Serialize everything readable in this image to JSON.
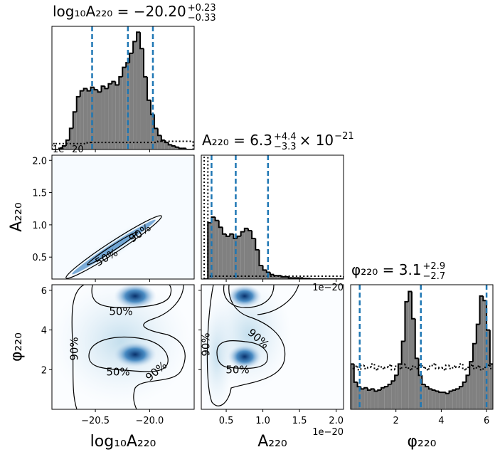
{
  "chart_data": [
    {
      "type": "histogram",
      "title": "log₁₀A₂₂₀ = −20.20",
      "title_sup": "+0.23",
      "title_sub": "−0.33",
      "bins": [
        -20.9,
        -20.8675,
        -20.835,
        -20.8025,
        -20.77,
        -20.7375,
        -20.705,
        -20.6725,
        -20.64,
        -20.6075,
        -20.575,
        -20.5425,
        -20.51,
        -20.4775,
        -20.445,
        -20.4125,
        -20.38,
        -20.3475,
        -20.315,
        -20.2825,
        -20.25,
        -20.2175,
        -20.185,
        -20.1525,
        -20.12,
        -20.0875,
        -20.055,
        -20.0225,
        -19.99,
        -19.9575,
        -19.925,
        -19.8925,
        -19.86,
        -19.8275,
        -19.795,
        -19.7625,
        -19.73,
        -19.6975,
        -19.665,
        -19.6325,
        -19.6
      ],
      "values": [
        0,
        0,
        1,
        3,
        8,
        18,
        32,
        45,
        50,
        52,
        50,
        53,
        51,
        49,
        54,
        52,
        56,
        58,
        55,
        62,
        70,
        74,
        82,
        92,
        100,
        86,
        62,
        42,
        30,
        18,
        12,
        8,
        6,
        4,
        3,
        2,
        1,
        1,
        0,
        0
      ],
      "prior": [
        5,
        5,
        5,
        5,
        5,
        5,
        5,
        5,
        5,
        5,
        6,
        6,
        6,
        6,
        6,
        6,
        6,
        6,
        6,
        6,
        6,
        6,
        6,
        6,
        6,
        6,
        6,
        6,
        6,
        6,
        7,
        7,
        7,
        7,
        7,
        7,
        7,
        7,
        7,
        7
      ],
      "quantiles": [
        -20.53,
        -20.2,
        -19.97
      ],
      "color": "#808080",
      "quantile_color": "#1f77b4",
      "xlim": [
        -20.9,
        -19.59
      ],
      "ylim": [
        0,
        105
      ]
    },
    {
      "type": "density2d",
      "xlim": [
        -20.9,
        -19.59
      ],
      "ylim": [
        0.16,
        2.08
      ],
      "yticks": [
        0.5,
        {
          "value": 1.0,
          "label": "1.0"
        },
        1.5,
        {
          "value": 2.0,
          "label": "2.0"
        }
      ],
      "ylabel": "A₂₂₀",
      "y_offset_text": "1e−20",
      "contour_labels": [
        "50%",
        "90%"
      ]
    },
    {
      "type": "histogram",
      "title": "A₂₂₀ = 6.3",
      "title_sup": "+4.4",
      "title_sub": "−3.3",
      "title_suffix": "× 10",
      "title_suffix_sup": "−21",
      "bins": [
        0.2,
        0.25,
        0.3,
        0.35,
        0.4,
        0.45,
        0.5,
        0.55,
        0.6,
        0.65,
        0.7,
        0.75,
        0.8,
        0.85,
        0.9,
        0.95,
        1.0,
        1.05,
        1.1,
        1.15,
        1.2,
        1.25,
        1.3,
        1.35,
        1.4,
        1.45,
        1.5,
        1.55,
        1.6,
        1.65,
        1.7,
        1.75,
        1.8,
        1.85,
        1.9,
        1.95,
        2.0,
        2.05,
        2.1
      ],
      "values": [
        0,
        50,
        55,
        52,
        46,
        40,
        38,
        40,
        36,
        38,
        42,
        45,
        43,
        36,
        26,
        12,
        8,
        6,
        4,
        3,
        3,
        2,
        2,
        1,
        1,
        1,
        1,
        0.5,
        0.5,
        0,
        0,
        0,
        0,
        0,
        0,
        0,
        0,
        0
      ],
      "prior": [
        200,
        2.5,
        2.5,
        2.5,
        2.5,
        2.5,
        2.5,
        2.5,
        2.5,
        2.5,
        2.5,
        2.5,
        2.5,
        2.5,
        2.5,
        2.5,
        2.5,
        2.5,
        2.5,
        2.5,
        2.5,
        2.5,
        2.5,
        2.5,
        2.5,
        2.5,
        2.5,
        2.5,
        2.5,
        2.5,
        2.5,
        2.5,
        2.5,
        2.5,
        2.5,
        2.5,
        2.5,
        2.5
      ],
      "quantiles": [
        0.3,
        0.63,
        1.07
      ],
      "color": "#808080",
      "quantile_color": "#1f77b4",
      "xlim": [
        0.16,
        2.1
      ],
      "ylim": [
        0,
        110
      ],
      "x_offset_text": "1e−20"
    },
    {
      "type": "density2d",
      "xlim": [
        -20.9,
        -19.59
      ],
      "ylim": [
        0,
        6.28
      ],
      "xticks": [
        {
          "value": -20.5,
          "label": "−20.5"
        },
        {
          "value": -20.0,
          "label": "−20.0"
        }
      ],
      "yticks": [
        2,
        4,
        6
      ],
      "xlabel": "log₁₀A₂₂₀",
      "ylabel": "φ₂₂₀",
      "contour_labels": [
        "50%",
        "50%",
        "90%",
        "90%"
      ]
    },
    {
      "type": "density2d",
      "xlim": [
        0.16,
        2.1
      ],
      "ylim": [
        0,
        6.28
      ],
      "xticks": [
        0.5,
        {
          "value": 1.0,
          "label": "1.0"
        },
        1.5,
        {
          "value": 2.0,
          "label": "2.0"
        }
      ],
      "xlabel": "A₂₂₀",
      "x_offset_text": "1e−20",
      "contour_labels": [
        "90%",
        "90%",
        "50%"
      ]
    },
    {
      "type": "histogram",
      "title": "φ₂₂₀ = 3.1",
      "title_sup": "+2.9",
      "title_sub": "−2.7",
      "bins": [
        0,
        0.15,
        0.3,
        0.45,
        0.6,
        0.75,
        0.9,
        1.05,
        1.2,
        1.35,
        1.5,
        1.65,
        1.8,
        1.95,
        2.1,
        2.25,
        2.4,
        2.55,
        2.7,
        2.85,
        3.0,
        3.15,
        3.3,
        3.45,
        3.6,
        3.75,
        3.9,
        4.05,
        4.2,
        4.35,
        4.5,
        4.65,
        4.8,
        4.95,
        5.1,
        5.25,
        5.4,
        5.55,
        5.7,
        5.85,
        6.0,
        6.15,
        6.3
      ],
      "values": [
        40,
        24,
        20,
        18,
        19,
        17,
        18,
        16,
        17,
        19,
        20,
        22,
        25,
        30,
        40,
        60,
        95,
        104,
        80,
        45,
        30,
        22,
        20,
        18,
        17,
        16,
        15,
        15,
        14,
        16,
        17,
        18,
        20,
        24,
        30,
        42,
        58,
        75,
        100,
        96,
        70,
        40
      ],
      "prior": [
        36,
        38,
        35,
        39,
        36,
        37,
        40,
        35,
        38,
        36,
        37,
        39,
        35,
        38,
        36,
        40,
        37,
        35,
        38,
        36,
        39,
        37,
        35,
        38,
        40,
        36,
        37,
        35,
        39,
        36,
        38,
        37,
        40,
        35,
        37,
        39,
        36,
        38,
        35,
        37,
        39,
        36
      ],
      "quantiles": [
        0.4,
        3.1,
        6.0
      ],
      "color": "#808080",
      "quantile_color": "#1f77b4",
      "xlim": [
        0,
        6.28
      ],
      "ylim": [
        0,
        110
      ],
      "xticks": [
        2,
        4,
        6
      ],
      "xlabel": "φ₂₂₀"
    }
  ]
}
